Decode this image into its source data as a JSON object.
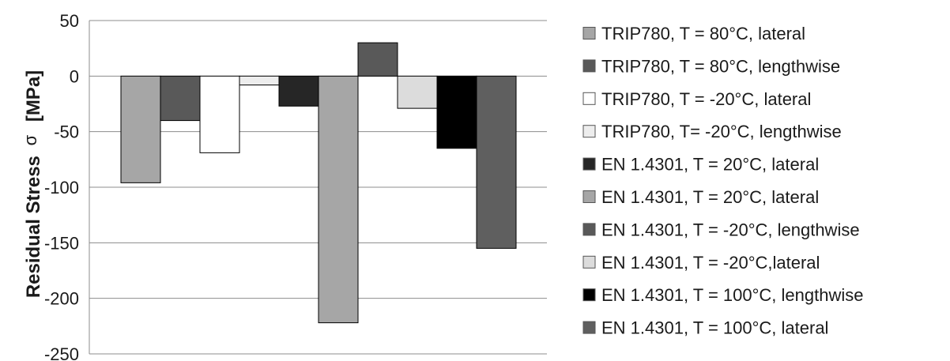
{
  "chart_data": {
    "type": "bar",
    "ylabel": "Residual Stress σ  [MPa]",
    "ylabel_main": "Residual Stress",
    "ylabel_symbol": "σ",
    "ylabel_unit": "[MPa]",
    "ylim": [
      -250,
      50
    ],
    "yticks": [
      50,
      0,
      -50,
      -100,
      -150,
      -200,
      -250
    ],
    "grid": true,
    "legend_position": "right",
    "series": [
      {
        "name": "TRIP780, T = 80°C, lateral",
        "value": -96,
        "color": "#a6a6a6"
      },
      {
        "name": "TRIP780, T = 80°C, lengthwise",
        "value": -40,
        "color": "#595959"
      },
      {
        "name": "TRIP780, T = -20°C, lateral",
        "value": -69,
        "color": "#ffffff"
      },
      {
        "name": "TRIP780, T= -20°C, lengthwise",
        "value": -8,
        "color": "#ededed"
      },
      {
        "name": "EN 1.4301, T = 20°C, lateral",
        "value": -27,
        "color": "#262626"
      },
      {
        "name": "EN 1.4301, T = 20°C, lateral",
        "value": -222,
        "color": "#a6a6a6"
      },
      {
        "name": "EN 1.4301, T = -20°C, lengthwise",
        "value": 30,
        "color": "#595959"
      },
      {
        "name": "EN 1.4301, T = -20°C,lateral",
        "value": -29,
        "color": "#dcdcdc"
      },
      {
        "name": "EN 1.4301, T = 100°C, lengthwise",
        "value": -65,
        "color": "#000000"
      },
      {
        "name": "EN 1.4301, T = 100°C, lateral",
        "value": -155,
        "color": "#5f5f5f"
      }
    ]
  }
}
